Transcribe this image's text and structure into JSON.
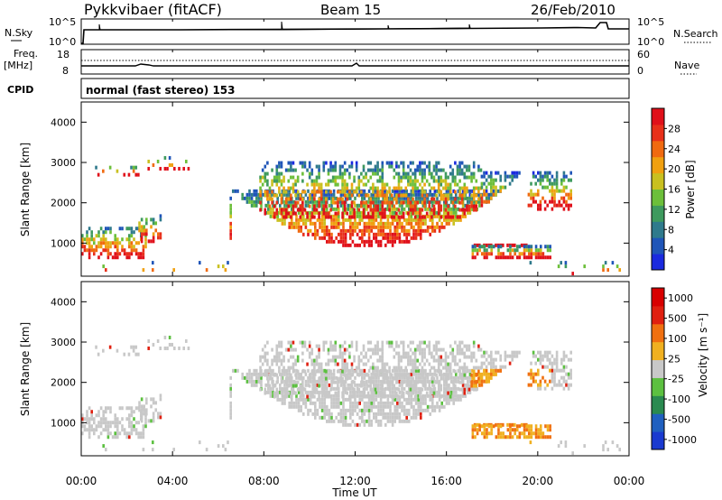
{
  "header": {
    "title": "Pykkvibaer (fitACF)",
    "beam": "Beam 15",
    "date": "26/Feb/2010"
  },
  "nsky_panel": {
    "left_label": "N.Sky",
    "left_ticks": [
      "10^5",
      "10^0"
    ],
    "right_ticks": [
      "10^5",
      "10^0"
    ],
    "right_label": "N.Search"
  },
  "freq_panel": {
    "left_label_1": "Freq.",
    "left_label_2": "[MHz]",
    "left_ticks": [
      "18",
      "8"
    ],
    "right_ticks": [
      "60",
      "0"
    ],
    "right_label": "Nave"
  },
  "cpid": {
    "label": "CPID",
    "value": "normal (fast stereo) 153"
  },
  "chart_data": [
    {
      "type": "heatmap",
      "ylabel": "Slant Range [km]",
      "yticks": [
        "1000",
        "2000",
        "3000",
        "4000"
      ],
      "ylim": [
        180,
        4500
      ],
      "xlim_hours": [
        0,
        24
      ],
      "colorbar": {
        "label": "Power [dB]",
        "ticks": [
          "4",
          "8",
          "12",
          "16",
          "20",
          "24",
          "28"
        ],
        "colors": [
          "#1a2adf",
          "#1f55b8",
          "#2f7a8c",
          "#3e9a5e",
          "#6cbf3a",
          "#c9c020",
          "#f0a010",
          "#f06a10",
          "#e8301a",
          "#e0101a"
        ]
      }
    },
    {
      "type": "heatmap",
      "ylabel": "Slant Range [km]",
      "yticks": [
        "1000",
        "2000",
        "3000",
        "4000"
      ],
      "ylim": [
        180,
        4500
      ],
      "xlim_hours": [
        0,
        24
      ],
      "colorbar": {
        "label": "Velocity [m s⁻¹]",
        "ticks": [
          "1000",
          "500",
          "100",
          "25",
          "-25",
          "-100",
          "-500",
          "-1000"
        ],
        "colors": [
          "#1a3ad0",
          "#2060c0",
          "#2a8a50",
          "#5cc040",
          "#c8c8c8",
          "#f0b020",
          "#f07010",
          "#e02010",
          "#d80000"
        ]
      }
    }
  ],
  "xaxis": {
    "ticks": [
      "00:00",
      "04:00",
      "08:00",
      "12:00",
      "16:00",
      "20:00",
      "00:00"
    ],
    "label": "Time UT"
  }
}
